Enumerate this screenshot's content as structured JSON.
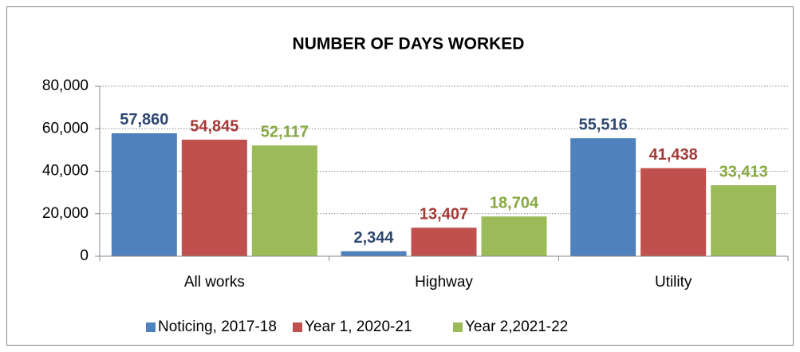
{
  "chart_data": {
    "type": "bar",
    "title": "NUMBER OF DAYS WORKED",
    "categories": [
      "All works",
      "Highway",
      "Utility"
    ],
    "series": [
      {
        "name": "Noticing, 2017-18",
        "color": "#4f81bd",
        "label_color": "#2c4770",
        "values": [
          57860,
          2344,
          55516
        ],
        "value_labels": [
          "57,860",
          "2,344",
          "55,516"
        ]
      },
      {
        "name": "Year 1, 2020-21",
        "color": "#c0504d",
        "label_color": "#a43a36",
        "values": [
          54845,
          13407,
          41438
        ],
        "value_labels": [
          "54,845",
          "13,407",
          "41,438"
        ]
      },
      {
        "name": "Year 2,2021-22",
        "color": "#9bbb59",
        "label_color": "#86a83f",
        "values": [
          52117,
          18704,
          33413
        ],
        "value_labels": [
          "52,117",
          "18,704",
          "33,413"
        ]
      }
    ],
    "ylim": [
      0,
      80000
    ],
    "yticks": [
      0,
      {
        "value": 20000,
        "label": "20,000"
      },
      {
        "value": 40000,
        "label": "40,000"
      },
      {
        "value": 60000,
        "label": "60,000"
      },
      {
        "value": 80000,
        "label": "80,000"
      }
    ],
    "grid": true,
    "legend": "bottom"
  }
}
